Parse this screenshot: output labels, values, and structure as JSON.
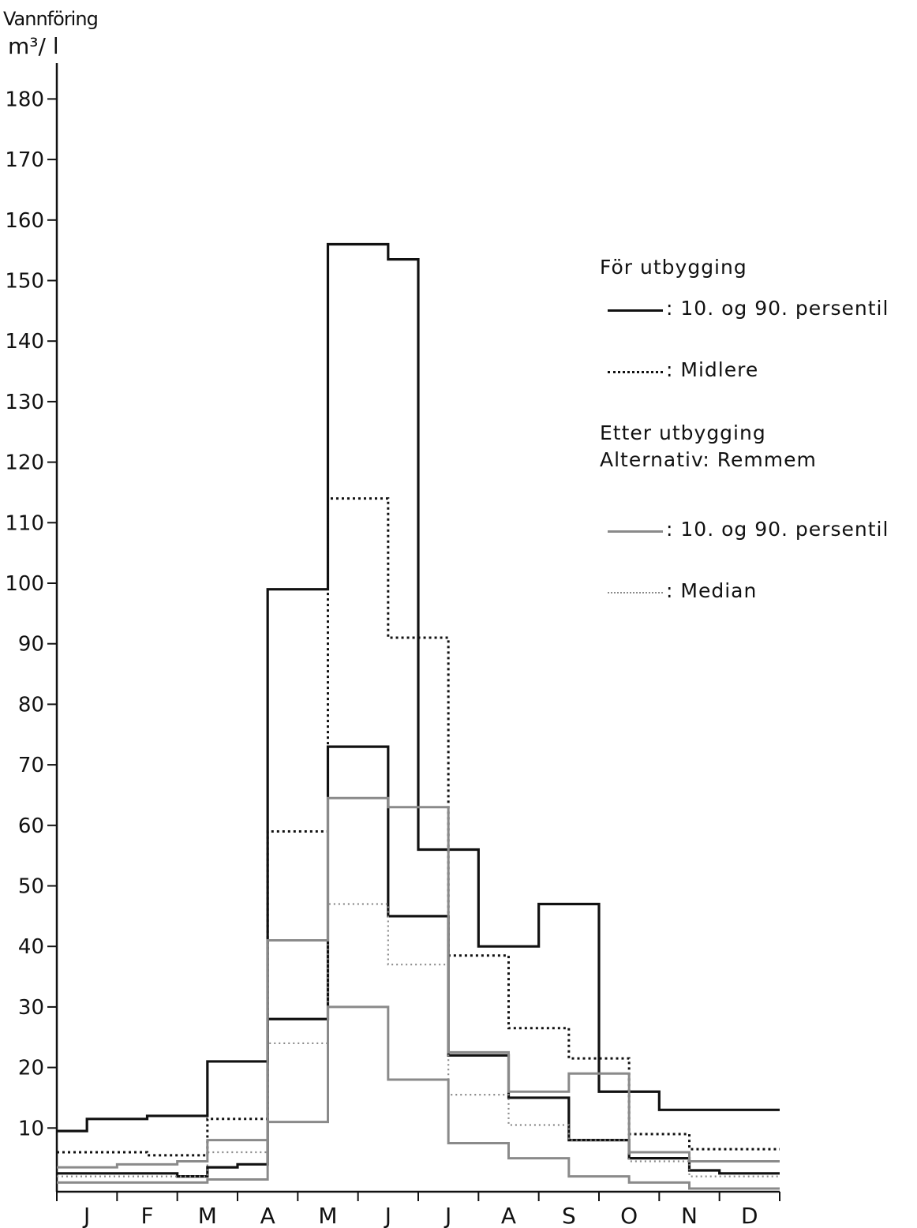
{
  "chart_data": {
    "type": "line",
    "step": true,
    "ylabel_line1": "Vannföring",
    "ylabel_line2": "m³/ l",
    "yticks": [
      10,
      20,
      30,
      40,
      50,
      60,
      70,
      80,
      90,
      100,
      110,
      120,
      130,
      140,
      150,
      160,
      170,
      180
    ],
    "ylim": [
      0,
      185
    ],
    "categories": [
      "J",
      "F",
      "M",
      "A",
      "M",
      "J",
      "J",
      "A",
      "S",
      "O",
      "N",
      "D"
    ],
    "grid": false,
    "legend": {
      "group1_title": "För utbygging",
      "group1_items": [
        "10. og 90. persentil",
        "Midlere"
      ],
      "group2_title_line1": "Etter utbygging",
      "group2_title_line2": "Alternativ: Remmem",
      "group2_items": [
        "10. og 90. persentil",
        "Median"
      ],
      "colon": ":"
    },
    "series": [
      {
        "group": "för",
        "style": "solid",
        "color": "#111111",
        "x": [
          0,
          0.5,
          1,
          1.5,
          2,
          2.5,
          3,
          3.5,
          4,
          4.5,
          5,
          5.5,
          6,
          6.5,
          7,
          7.5,
          8,
          8.5,
          9,
          9.5,
          10,
          10.5,
          11,
          11.5
        ],
        "y": [
          9.5,
          11.5,
          11.5,
          12,
          12,
          21,
          21,
          99,
          99,
          156,
          156,
          153.5,
          56,
          56,
          40,
          40,
          47,
          47,
          16,
          16,
          13,
          13,
          13,
          13
        ]
      },
      {
        "group": "för",
        "style": "solid",
        "color": "#111111",
        "x": [
          0,
          0.5,
          1,
          1.5,
          2,
          2.5,
          3,
          3.5,
          4,
          4.5,
          5,
          5.5,
          6,
          6.5,
          7,
          7.5,
          8,
          8.5,
          9,
          9.5,
          10,
          10.5,
          11,
          11.5
        ],
        "y": [
          2.5,
          2.5,
          2.5,
          2.5,
          2,
          3.5,
          4,
          28,
          28,
          73,
          73,
          45,
          45,
          22,
          22,
          15,
          15,
          8,
          8,
          5,
          5,
          3,
          2.5,
          2.5
        ]
      },
      {
        "group": "för",
        "style": "dotted",
        "color": "#111111",
        "x": [
          0,
          0.5,
          1,
          1.5,
          2,
          2.5,
          3,
          3.5,
          4,
          4.5,
          5,
          5.5,
          6,
          6.5,
          7,
          7.5,
          8,
          8.5,
          9,
          9.5,
          10,
          10.5,
          11,
          11.5
        ],
        "y": [
          6,
          6,
          6,
          5.5,
          5.5,
          11.5,
          11.5,
          59,
          59,
          114,
          114,
          91,
          91,
          38.5,
          38.5,
          26.5,
          26.5,
          21.5,
          21.5,
          9,
          9,
          6.5,
          6.5,
          6.5
        ]
      },
      {
        "group": "etter",
        "style": "solid",
        "color": "#8a8a8a",
        "x": [
          0,
          0.5,
          1,
          1.5,
          2,
          2.5,
          3,
          3.5,
          4,
          4.5,
          5,
          5.5,
          6,
          6.5,
          7,
          7.5,
          8,
          8.5,
          9,
          9.5,
          10,
          10.5,
          11,
          11.5
        ],
        "y": [
          3.5,
          3.5,
          4,
          4,
          4.5,
          8,
          8,
          41,
          41,
          64.5,
          64.5,
          63,
          63,
          22.5,
          22.5,
          16,
          16,
          19,
          19,
          6,
          6,
          4.5,
          4.5,
          4.5
        ]
      },
      {
        "group": "etter",
        "style": "solid",
        "color": "#8a8a8a",
        "x": [
          0,
          0.5,
          1,
          1.5,
          2,
          2.5,
          3,
          3.5,
          4,
          4.5,
          5,
          5.5,
          6,
          6.5,
          7,
          7.5,
          8,
          8.5,
          9,
          9.5,
          10,
          10.5,
          11,
          11.5
        ],
        "y": [
          1,
          1,
          1,
          1,
          1,
          1.5,
          1.5,
          11,
          11,
          30,
          30,
          18,
          18,
          7.5,
          7.5,
          5,
          5,
          2,
          2,
          1,
          1,
          0,
          0,
          0
        ]
      },
      {
        "group": "etter",
        "style": "dotted",
        "color": "#8a8a8a",
        "x": [
          0,
          0.5,
          1,
          1.5,
          2,
          2.5,
          3,
          3.5,
          4,
          4.5,
          5,
          5.5,
          6,
          6.5,
          7,
          7.5,
          8,
          8.5,
          9,
          9.5,
          10,
          10.5,
          11,
          11.5
        ],
        "y": [
          2,
          2,
          2,
          2,
          2,
          6,
          6,
          24,
          24,
          47,
          47,
          37,
          37,
          15.5,
          15.5,
          10.5,
          10.5,
          8,
          8,
          4.5,
          4.5,
          2,
          2,
          2
        ]
      }
    ]
  }
}
